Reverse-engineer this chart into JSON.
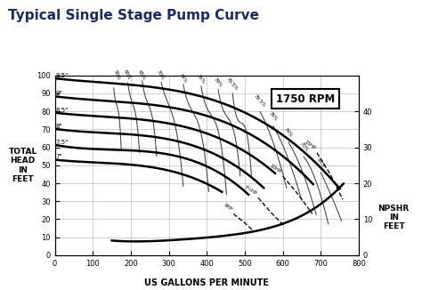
{
  "title": "Typical Single Stage Pump Curve",
  "title_color": "#1a2a6e",
  "title_fontsize": 11,
  "rpm_label": "1750 RPM",
  "xlabel": "US GALLONS PER MINUTE",
  "ylabel_left": "TOTAL\nHEAD\nIN\nFEET",
  "ylabel_right": "NPSHR\nIN\nFEET",
  "xlim": [
    0,
    800
  ],
  "ylim": [
    0,
    100
  ],
  "xticks": [
    0,
    100,
    200,
    300,
    400,
    500,
    600,
    700,
    800
  ],
  "yticks": [
    0,
    10,
    20,
    30,
    40,
    50,
    60,
    70,
    80,
    90,
    100
  ],
  "yticks_right": [
    0,
    10,
    20,
    30,
    40
  ],
  "impeller_curves": [
    {
      "label": "9.5\"",
      "x": [
        0,
        100,
        200,
        300,
        400,
        500,
        600,
        700,
        750
      ],
      "y": [
        98,
        97,
        95,
        92,
        87,
        79,
        67,
        50,
        36
      ]
    },
    {
      "label": "9\"",
      "x": [
        0,
        100,
        200,
        300,
        400,
        500,
        600,
        680
      ],
      "y": [
        88,
        87,
        85,
        82,
        77,
        69,
        56,
        39
      ]
    },
    {
      "label": "8.5\"",
      "x": [
        0,
        100,
        200,
        300,
        400,
        500,
        580
      ],
      "y": [
        79,
        78,
        76,
        73,
        67,
        59,
        45
      ]
    },
    {
      "label": "8\"",
      "x": [
        0,
        100,
        200,
        300,
        400,
        480,
        550
      ],
      "y": [
        70,
        69,
        67,
        64,
        58,
        50,
        37
      ]
    },
    {
      "label": "7.5\"",
      "x": [
        0,
        100,
        200,
        300,
        400,
        460,
        510
      ],
      "y": [
        61,
        60,
        58,
        55,
        50,
        43,
        33
      ]
    },
    {
      "label": "7\"",
      "x": [
        0,
        100,
        200,
        300,
        380,
        440
      ],
      "y": [
        53,
        52,
        50,
        47,
        42,
        35
      ]
    }
  ],
  "npshr_x": [
    150,
    200,
    300,
    400,
    500,
    600,
    700,
    760
  ],
  "npshr_y": [
    4,
    4,
    4,
    5,
    6,
    9,
    14,
    20
  ],
  "background_color": "#ffffff",
  "grid_color": "#999999"
}
